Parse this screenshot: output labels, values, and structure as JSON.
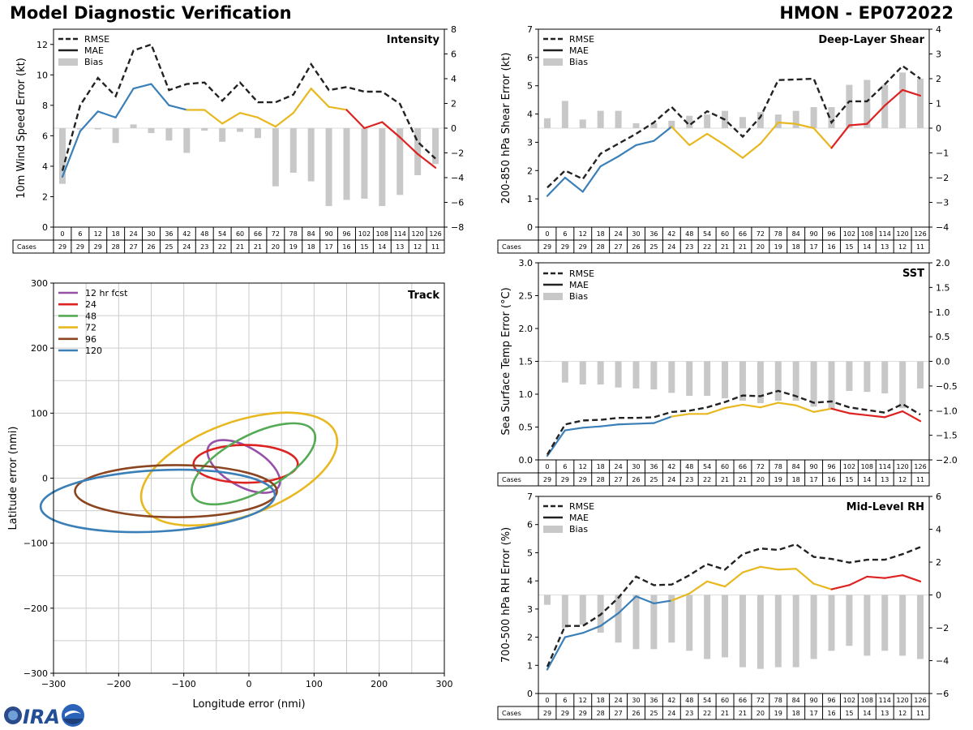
{
  "header": {
    "title": "Model Diagnostic Verification",
    "storm": "HMON - EP072022"
  },
  "legend_labels": {
    "rmse": "RMSE",
    "mae": "MAE",
    "bias": "Bias"
  },
  "colors": {
    "rmse": "#222222",
    "mae_early": "#3a7fb8",
    "mae_mid": "#e8b820",
    "mae_late": "#dd2222",
    "bias": "#c8c8c8",
    "grid": "#cccccc"
  },
  "table": {
    "cases_label": "Cases",
    "hours": [
      "0",
      "6",
      "12",
      "18",
      "24",
      "30",
      "36",
      "42",
      "48",
      "54",
      "60",
      "66",
      "72",
      "78",
      "84",
      "90",
      "96",
      "102",
      "108",
      "114",
      "120",
      "126"
    ],
    "cases": [
      "29",
      "29",
      "29",
      "28",
      "27",
      "26",
      "25",
      "24",
      "23",
      "22",
      "21",
      "21",
      "20",
      "19",
      "18",
      "17",
      "16",
      "15",
      "14",
      "13",
      "12",
      "11"
    ]
  },
  "chart_data": [
    {
      "type": "line",
      "name": "intensity",
      "title": "Intensity",
      "ylabel": "10m Wind Speed Error (kt)",
      "ylim": [
        0,
        13
      ],
      "yticks": [
        0,
        2,
        4,
        6,
        8,
        10,
        12
      ],
      "y2lim": [
        -8,
        8
      ],
      "y2ticks": [
        -8,
        -6,
        -4,
        -2,
        0,
        2,
        4,
        6,
        8
      ],
      "x": [
        0,
        6,
        12,
        18,
        24,
        30,
        36,
        42,
        48,
        54,
        60,
        66,
        72,
        78,
        84,
        90,
        96,
        102,
        108,
        114,
        120,
        126
      ],
      "rmse": [
        3.7,
        8.0,
        9.8,
        8.6,
        11.6,
        12.0,
        9.0,
        9.4,
        9.5,
        8.3,
        9.5,
        8.2,
        8.2,
        8.7,
        10.7,
        9.0,
        9.2,
        8.9,
        8.9,
        8.1,
        5.6,
        4.5
      ],
      "mae": [
        3.3,
        6.3,
        7.6,
        7.2,
        9.1,
        9.4,
        8.0,
        7.7,
        7.7,
        6.8,
        7.5,
        7.2,
        6.6,
        7.5,
        9.1,
        7.9,
        7.7,
        6.5,
        6.9,
        5.9,
        4.8,
        3.9
      ],
      "bias": [
        -4.5,
        -0.1,
        -0.1,
        -1.2,
        0.3,
        -0.4,
        -1.0,
        -2.0,
        -0.2,
        -1.1,
        -0.3,
        -0.8,
        -4.7,
        -3.6,
        -4.3,
        -6.3,
        -5.8,
        -5.7,
        -6.3,
        -5.4,
        -3.8,
        -2.9
      ]
    },
    {
      "type": "line",
      "name": "shear",
      "title": "Deep-Layer Shear",
      "ylabel": "200-850 hPa Shear Error (kt)",
      "ylim": [
        0,
        7
      ],
      "yticks": [
        0,
        1,
        2,
        3,
        4,
        5,
        6,
        7
      ],
      "y2lim": [
        -4,
        4
      ],
      "y2ticks": [
        -4,
        -3,
        -2,
        -1,
        0,
        1,
        2,
        3,
        4
      ],
      "x": [
        0,
        6,
        12,
        18,
        24,
        30,
        36,
        42,
        48,
        54,
        60,
        66,
        72,
        78,
        84,
        90,
        96,
        102,
        108,
        114,
        120,
        126
      ],
      "rmse": [
        1.4,
        2.0,
        1.7,
        2.6,
        2.95,
        3.3,
        3.7,
        4.25,
        3.6,
        4.1,
        3.8,
        3.2,
        3.9,
        5.2,
        5.22,
        5.25,
        3.7,
        4.45,
        4.45,
        5.05,
        5.7,
        5.25
      ],
      "mae": [
        1.1,
        1.75,
        1.25,
        2.15,
        2.5,
        2.9,
        3.05,
        3.55,
        2.9,
        3.3,
        2.9,
        2.45,
        2.95,
        3.7,
        3.65,
        3.5,
        2.8,
        3.6,
        3.65,
        4.3,
        4.85,
        4.65
      ],
      "bias": [
        0.4,
        1.1,
        0.35,
        0.7,
        0.7,
        0.2,
        0.2,
        0.3,
        0.5,
        0.55,
        0.7,
        0.45,
        0.65,
        0.55,
        0.7,
        0.85,
        0.85,
        1.75,
        1.95,
        1.75,
        2.25,
        2.0
      ]
    },
    {
      "type": "line",
      "name": "sst",
      "title": "SST",
      "ylabel": "Sea Surface Temp Error (°C)",
      "ylim": [
        0,
        3
      ],
      "yticks": [
        0.0,
        0.5,
        1.0,
        1.5,
        2.0,
        2.5,
        3.0
      ],
      "y2lim": [
        -2,
        2
      ],
      "y2ticks": [
        -2.0,
        -1.5,
        -1.0,
        -0.5,
        0.0,
        0.5,
        1.0,
        1.5,
        2.0
      ],
      "x": [
        0,
        6,
        12,
        18,
        24,
        30,
        36,
        42,
        48,
        54,
        60,
        66,
        72,
        78,
        84,
        90,
        96,
        102,
        108,
        114,
        120,
        126
      ],
      "rmse": [
        0.08,
        0.54,
        0.6,
        0.61,
        0.64,
        0.64,
        0.65,
        0.73,
        0.75,
        0.8,
        0.88,
        0.98,
        0.97,
        1.05,
        0.97,
        0.87,
        0.89,
        0.8,
        0.76,
        0.72,
        0.85,
        0.69
      ],
      "mae": [
        0.06,
        0.45,
        0.49,
        0.51,
        0.54,
        0.55,
        0.56,
        0.66,
        0.7,
        0.7,
        0.79,
        0.84,
        0.8,
        0.87,
        0.83,
        0.73,
        0.78,
        0.71,
        0.68,
        0.65,
        0.74,
        0.59
      ],
      "bias": [
        0,
        -0.43,
        -0.47,
        -0.47,
        -0.53,
        -0.55,
        -0.57,
        -0.64,
        -0.7,
        -0.7,
        -0.75,
        -0.8,
        -0.85,
        -0.8,
        -0.8,
        -0.92,
        -0.97,
        -0.6,
        -0.62,
        -0.65,
        -0.95,
        -0.55
      ]
    },
    {
      "type": "line",
      "name": "rh",
      "title": "Mid-Level RH",
      "ylabel": "700-500 hPa RH Error (%)",
      "ylim": [
        0,
        7
      ],
      "yticks": [
        0,
        1,
        2,
        3,
        4,
        5,
        6,
        7
      ],
      "y2lim": [
        -6,
        6
      ],
      "y2ticks": [
        -6,
        -4,
        -2,
        0,
        2,
        4,
        6
      ],
      "x": [
        0,
        6,
        12,
        18,
        24,
        30,
        36,
        42,
        48,
        54,
        60,
        66,
        72,
        78,
        84,
        90,
        96,
        102,
        108,
        114,
        120,
        126
      ],
      "rmse": [
        0.95,
        2.4,
        2.4,
        2.8,
        3.4,
        4.15,
        3.85,
        3.87,
        4.2,
        4.6,
        4.4,
        4.95,
        5.15,
        5.1,
        5.3,
        4.85,
        4.78,
        4.65,
        4.75,
        4.75,
        4.95,
        5.2
      ],
      "mae": [
        0.85,
        2.0,
        2.15,
        2.4,
        2.85,
        3.45,
        3.2,
        3.3,
        3.55,
        3.98,
        3.8,
        4.3,
        4.5,
        4.4,
        4.43,
        3.9,
        3.7,
        3.85,
        4.15,
        4.1,
        4.2,
        3.98
      ],
      "bias": [
        -0.6,
        -2.0,
        -1.8,
        -2.3,
        -2.9,
        -3.3,
        -3.3,
        -2.9,
        -3.4,
        -3.9,
        -3.8,
        -4.4,
        -4.5,
        -4.4,
        -4.4,
        -3.9,
        -3.4,
        -3.1,
        -3.7,
        -3.4,
        -3.7,
        -3.9
      ]
    },
    {
      "type": "ellipse",
      "name": "track",
      "title": "Track",
      "xlabel": "Longitude error (nmi)",
      "ylabel": "Latitude error (nmi)",
      "xlim": [
        -300,
        300
      ],
      "ylim": [
        -300,
        300
      ],
      "ticks": [
        -300,
        -200,
        -100,
        0,
        100,
        200,
        300
      ],
      "series": [
        {
          "label": "12 hr fcst",
          "color": "#9650a8",
          "cx": -8,
          "cy": 18,
          "rx": 62,
          "ry": 30,
          "angle": -30
        },
        {
          "label": "24",
          "color": "#dd2222",
          "cx": -5,
          "cy": 22,
          "rx": 80,
          "ry": 29,
          "angle": 0
        },
        {
          "label": "48",
          "color": "#55aa55",
          "cx": 7,
          "cy": 22,
          "rx": 105,
          "ry": 43,
          "angle": 28
        },
        {
          "label": "72",
          "color": "#e8b820",
          "cx": -15,
          "cy": 14,
          "rx": 158,
          "ry": 72,
          "angle": 20
        },
        {
          "label": "96",
          "color": "#8b4520",
          "cx": -112,
          "cy": -20,
          "rx": 155,
          "ry": 40,
          "angle": 0
        },
        {
          "label": "120",
          "color": "#3a7fb8",
          "cx": -140,
          "cy": -35,
          "rx": 180,
          "ry": 47,
          "angle": 3
        }
      ]
    }
  ]
}
